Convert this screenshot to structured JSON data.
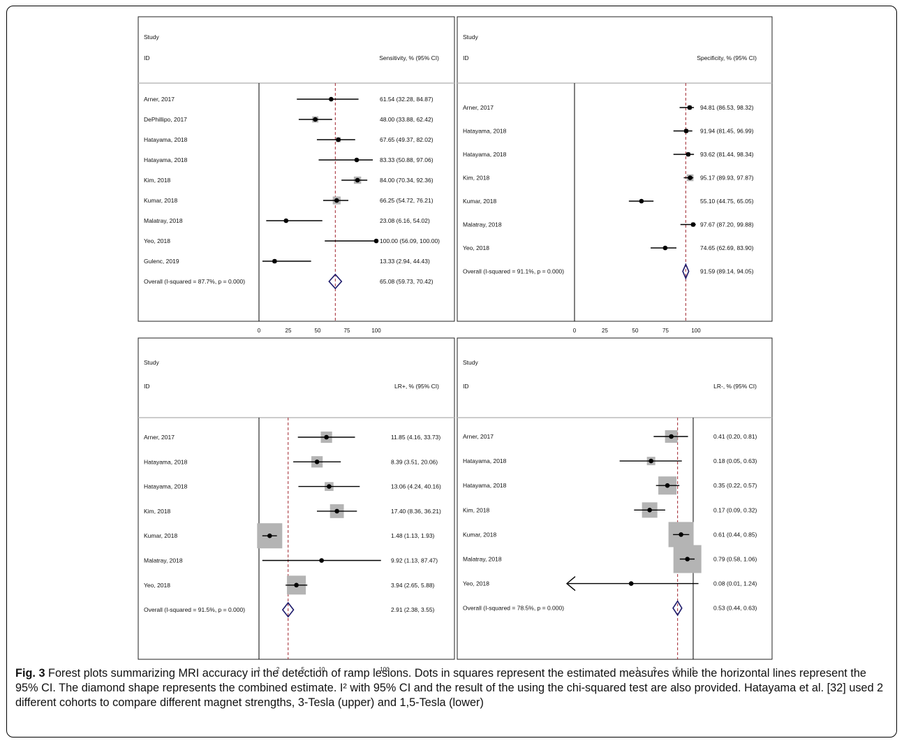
{
  "figure": {
    "caption_label": "Fig. 3",
    "caption_text": " Forest plots summarizing MRI accuracy in the detection of ramp lesions. Dots in squares represent the estimated measures while the horizontal lines represent the 95% CI. The diamond shape represents the combined estimate. I² with 95% CI and the result of the using the chi-squared test are also provided. Hatayama et al. [32] used 2 different cohorts to compare different magnet strengths, 3-Tesla (upper) and 1,5-Tesla (lower)"
  },
  "colors": {
    "ref_line": "#a0252d",
    "diamond": "#1c1a6b",
    "box": "#b4b4b4",
    "line": "#000000"
  },
  "chart_data": [
    {
      "type": "forest",
      "header_study": "Study",
      "header_id": "ID",
      "header_stat": "Sensitivity, % (95% CI)",
      "scale": "linear",
      "xlim": [
        0,
        100
      ],
      "ticks": [
        0,
        25,
        50,
        75,
        100
      ],
      "tick_labels": [
        "0",
        "25",
        "50",
        "75",
        "100"
      ],
      "ref_value": 65.08,
      "studies": [
        {
          "label": "Arner, 2017",
          "estimate": 61.54,
          "lower": 32.28,
          "upper": 84.87,
          "weight": 0.0,
          "text": "61.54 (32.28, 84.87)"
        },
        {
          "label": "DePhillipo, 2017",
          "estimate": 48.0,
          "lower": 33.88,
          "upper": 62.42,
          "weight": 0.55,
          "text": "48.00 (33.88, 62.42)"
        },
        {
          "label": "Hatayama, 2018",
          "estimate": 67.65,
          "lower": 49.37,
          "upper": 82.02,
          "weight": 0.45,
          "text": "67.65 (49.37, 82.02)"
        },
        {
          "label": "Hatayama, 2018",
          "estimate": 83.33,
          "lower": 50.88,
          "upper": 97.06,
          "weight": 0.0,
          "text": "83.33 (50.88, 97.06)"
        },
        {
          "label": "Kim, 2018",
          "estimate": 84.0,
          "lower": 70.34,
          "upper": 92.36,
          "weight": 0.65,
          "text": "84.00 (70.34, 92.36)"
        },
        {
          "label": "Kumar, 2018",
          "estimate": 66.25,
          "lower": 54.72,
          "upper": 76.21,
          "weight": 0.7,
          "text": "66.25 (54.72, 76.21)"
        },
        {
          "label": "Malatray, 2018",
          "estimate": 23.08,
          "lower": 6.16,
          "upper": 54.02,
          "weight": 0.0,
          "text": "23.08 (6.16, 54.02)"
        },
        {
          "label": "Yeo, 2018",
          "estimate": 100.0,
          "lower": 56.09,
          "upper": 100.0,
          "weight": 0.0,
          "text": "100.00 (56.09, 100.00)"
        },
        {
          "label": "Gulenc, 2019",
          "estimate": 13.33,
          "lower": 2.94,
          "upper": 44.43,
          "weight": 0.3,
          "text": "13.33 (2.94, 44.43)"
        }
      ],
      "overall": {
        "label": "Overall  (I-squared = 87.7%, p = 0.000)",
        "estimate": 65.08,
        "lower": 59.73,
        "upper": 70.42,
        "text": "65.08 (59.73, 70.42)"
      }
    },
    {
      "type": "forest",
      "header_study": "Study",
      "header_id": "ID",
      "header_stat": "Specificity, % (95% CI)",
      "scale": "linear",
      "xlim": [
        0,
        100
      ],
      "ticks": [
        0,
        25,
        50,
        75,
        100
      ],
      "tick_labels": [
        "0",
        "25",
        "50",
        "75",
        "100"
      ],
      "ref_value": 91.59,
      "studies": [
        {
          "label": "Arner, 2017",
          "estimate": 94.81,
          "lower": 86.53,
          "upper": 98.32,
          "weight": 0.4,
          "text": "94.81 (86.53, 98.32)"
        },
        {
          "label": "Hatayama, 2018",
          "estimate": 91.94,
          "lower": 81.45,
          "upper": 96.99,
          "weight": 0.3,
          "text": "91.94 (81.45, 96.99)"
        },
        {
          "label": "Hatayama, 2018",
          "estimate": 93.62,
          "lower": 81.44,
          "upper": 98.34,
          "weight": 0.3,
          "text": "93.62 (81.44, 98.34)"
        },
        {
          "label": "Kim, 2018",
          "estimate": 95.17,
          "lower": 89.93,
          "upper": 97.87,
          "weight": 0.6,
          "text": "95.17 (89.93, 97.87)"
        },
        {
          "label": "Kumar, 2018",
          "estimate": 55.1,
          "lower": 44.75,
          "upper": 65.05,
          "weight": 0.0,
          "text": "55.10 (44.75, 65.05)"
        },
        {
          "label": "Malatray, 2018",
          "estimate": 97.67,
          "lower": 87.2,
          "upper": 99.88,
          "weight": 0.35,
          "text": "97.67 (87.20, 99.88)"
        },
        {
          "label": "Yeo, 2018",
          "estimate": 74.65,
          "lower": 62.69,
          "upper": 83.9,
          "weight": 0.0,
          "text": "74.65 (62.69, 83.90)"
        }
      ],
      "overall": {
        "label": "Overall  (I-squared = 91.1%, p = 0.000)",
        "estimate": 91.59,
        "lower": 89.14,
        "upper": 94.05,
        "text": "91.59 (89.14, 94.05)"
      }
    },
    {
      "type": "forest",
      "header_study": "Study",
      "header_id": "ID",
      "header_stat": "LR+, % (95% CI)",
      "scale": "log",
      "xlim": [
        1,
        100
      ],
      "ticks": [
        1,
        2,
        5,
        10,
        100
      ],
      "tick_labels": [
        "1",
        "2",
        "5",
        "10",
        "100"
      ],
      "ref_value": 2.91,
      "studies": [
        {
          "label": "Arner, 2017",
          "estimate": 11.85,
          "lower": 4.16,
          "upper": 33.73,
          "weight": 0.45,
          "text": "11.85 (4.16, 33.73)"
        },
        {
          "label": "Hatayama, 2018",
          "estimate": 8.39,
          "lower": 3.51,
          "upper": 20.06,
          "weight": 0.45,
          "text": "8.39 (3.51, 20.06)"
        },
        {
          "label": "Hatayama, 2018",
          "estimate": 13.06,
          "lower": 4.24,
          "upper": 40.16,
          "weight": 0.35,
          "text": "13.06 (4.24, 40.16)"
        },
        {
          "label": "Kim, 2018",
          "estimate": 17.4,
          "lower": 8.36,
          "upper": 36.21,
          "weight": 0.55,
          "text": "17.40 (8.36, 36.21)"
        },
        {
          "label": "Kumar, 2018",
          "estimate": 1.48,
          "lower": 1.13,
          "upper": 1.93,
          "weight": 1.0,
          "text": "1.48 (1.13, 1.93)"
        },
        {
          "label": "Malatray, 2018",
          "estimate": 9.92,
          "lower": 1.13,
          "upper": 87.47,
          "weight": 0.0,
          "text": "9.92 (1.13, 87.47)"
        },
        {
          "label": "Yeo, 2018",
          "estimate": 3.94,
          "lower": 2.65,
          "upper": 5.88,
          "weight": 0.75,
          "text": "3.94 (2.65, 5.88)"
        }
      ],
      "overall": {
        "label": "Overall  (I-squared = 91.5%, p = 0.000)",
        "estimate": 2.91,
        "lower": 2.38,
        "upper": 3.55,
        "text": "2.91 (2.38, 3.55)"
      }
    },
    {
      "type": "forest",
      "header_study": "Study",
      "header_id": "ID",
      "header_stat": "LR-, % (95% CI)",
      "scale": "log",
      "xlim": [
        0.03,
        1.4
      ],
      "ticks": [
        0.1,
        0.2,
        0.5,
        1
      ],
      "tick_labels": [
        ".1",
        ".2",
        ".5",
        "1"
      ],
      "ref_value": 0.53,
      "studies": [
        {
          "label": "Arner, 2017",
          "estimate": 0.41,
          "lower": 0.2,
          "upper": 0.81,
          "weight": 0.45,
          "text": "0.41 (0.20, 0.81)"
        },
        {
          "label": "Hatayama, 2018",
          "estimate": 0.18,
          "lower": 0.05,
          "upper": 0.63,
          "weight": 0.3,
          "text": "0.18 (0.05, 0.63)"
        },
        {
          "label": "Hatayama, 2018",
          "estimate": 0.35,
          "lower": 0.22,
          "upper": 0.57,
          "weight": 0.65,
          "text": "0.35 (0.22, 0.57)"
        },
        {
          "label": "Kim, 2018",
          "estimate": 0.17,
          "lower": 0.09,
          "upper": 0.32,
          "weight": 0.55,
          "text": "0.17 (0.09, 0.32)"
        },
        {
          "label": "Kumar, 2018",
          "estimate": 0.61,
          "lower": 0.44,
          "upper": 0.85,
          "weight": 0.9,
          "text": "0.61 (0.44, 0.85)"
        },
        {
          "label": "Malatray, 2018",
          "estimate": 0.79,
          "lower": 0.58,
          "upper": 1.06,
          "weight": 1.0,
          "text": "0.79 (0.58, 1.06)"
        },
        {
          "label": "Yeo, 2018",
          "estimate": 0.08,
          "lower": 0.01,
          "upper": 1.24,
          "weight": 0.0,
          "arrow_left": true,
          "text": "0.08 (0.01, 1.24)"
        }
      ],
      "overall": {
        "label": "Overall  (I-squared = 78.5%, p = 0.000)",
        "estimate": 0.53,
        "lower": 0.44,
        "upper": 0.63,
        "text": "0.53 (0.44, 0.63)"
      }
    }
  ]
}
